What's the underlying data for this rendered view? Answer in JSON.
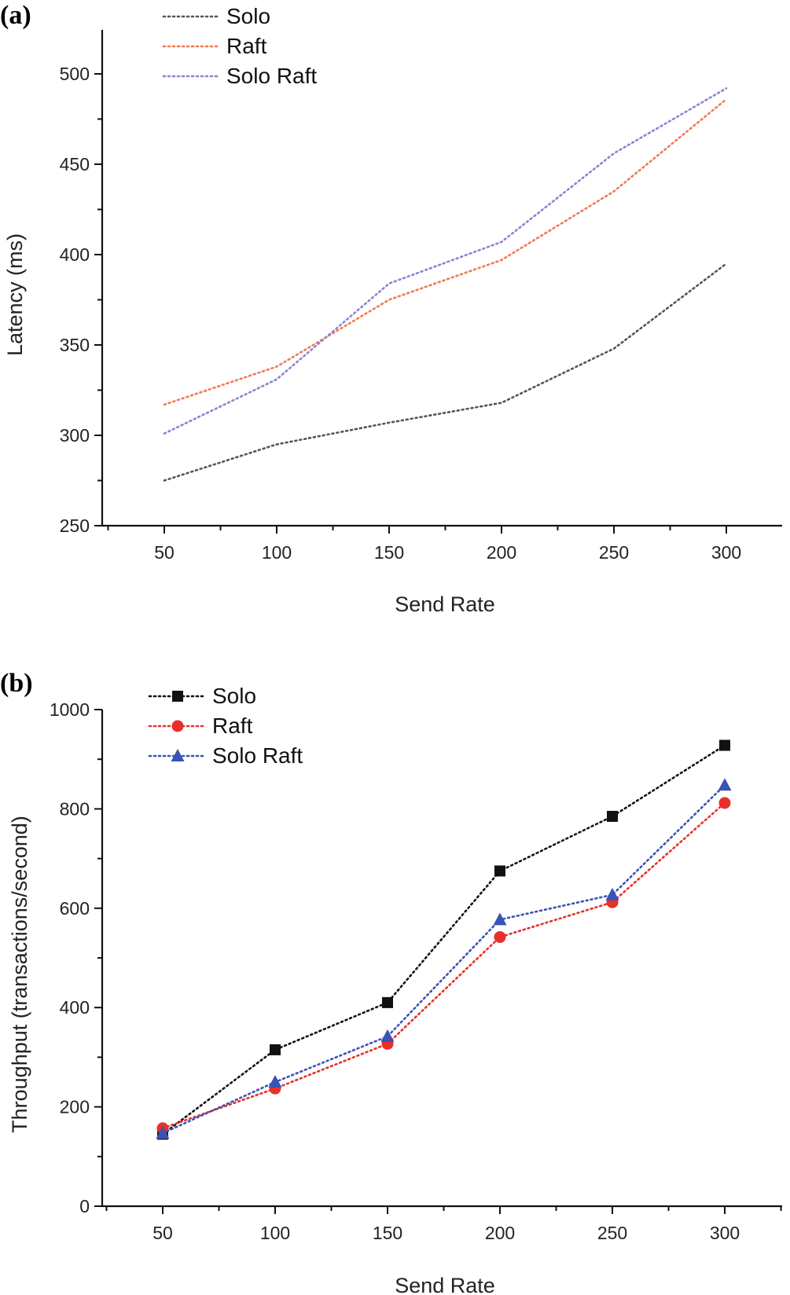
{
  "chart_data": [
    {
      "panel_label": "(a)",
      "type": "line",
      "xlabel": "Send Rate",
      "ylabel": "Latency (ms)",
      "x": [
        50,
        100,
        150,
        200,
        250,
        300
      ],
      "xticks": [
        "50",
        "100",
        "150",
        "200",
        "250",
        "300"
      ],
      "yticks": [
        "250",
        "300",
        "350",
        "400",
        "450",
        "500"
      ],
      "xlim": [
        25,
        325
      ],
      "ylim": [
        250,
        525
      ],
      "legend": "top-left",
      "markers": false,
      "series": [
        {
          "name": "Solo",
          "color": "#555555",
          "values": [
            275,
            295,
            307,
            318,
            348,
            395
          ]
        },
        {
          "name": "Raft",
          "color": "#f07a55",
          "values": [
            317,
            338,
            375,
            397,
            435,
            486
          ]
        },
        {
          "name": "Solo Raft",
          "color": "#8c82d4",
          "values": [
            301,
            331,
            384,
            407,
            456,
            492
          ]
        }
      ]
    },
    {
      "panel_label": "(b)",
      "type": "line",
      "xlabel": "Send Rate",
      "ylabel": "Throughput (transactions/second)",
      "x": [
        50,
        100,
        150,
        200,
        250,
        300
      ],
      "xticks": [
        "50",
        "100",
        "150",
        "200",
        "250",
        "300"
      ],
      "yticks": [
        "0",
        "200",
        "400",
        "600",
        "800",
        "1000"
      ],
      "xlim": [
        25,
        325
      ],
      "ylim": [
        0,
        1000
      ],
      "legend": "top-left",
      "markers": true,
      "series": [
        {
          "name": "Solo",
          "color": "#111111",
          "marker": "square",
          "values": [
            145,
            315,
            410,
            675,
            785,
            928
          ]
        },
        {
          "name": "Raft",
          "color": "#e8302b",
          "marker": "circle",
          "values": [
            157,
            237,
            327,
            542,
            612,
            812
          ]
        },
        {
          "name": "Solo Raft",
          "color": "#3a53b5",
          "marker": "triangle",
          "values": [
            147,
            250,
            342,
            577,
            627,
            848
          ]
        }
      ]
    }
  ]
}
